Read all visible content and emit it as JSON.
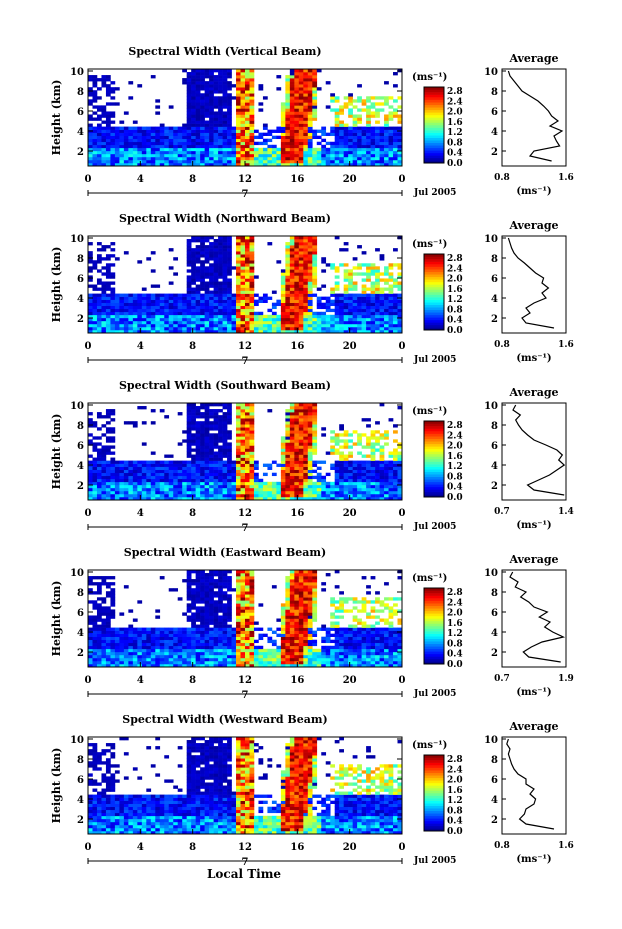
{
  "chart_data": [
    {
      "type": "heatmap",
      "title": "Spectral Width (Vertical Beam)",
      "ylabel": "Height (km)",
      "yticks": [
        2,
        4,
        6,
        8,
        10
      ],
      "ylim": [
        0.5,
        10.2
      ],
      "xticks": [
        "0",
        "4",
        "8",
        "12",
        "16",
        "20",
        "0"
      ],
      "xlim": [
        0,
        24
      ],
      "date_label": "Jul 2005",
      "day_marker": "7",
      "colorbar": {
        "unit": "(ms⁻¹)",
        "ticks": [
          "2.8",
          "2.4",
          "2.0",
          "1.6",
          "1.2",
          "0.8",
          "0.4",
          "0.0"
        ],
        "range": [
          0,
          3.0
        ]
      },
      "average": {
        "title": "Average",
        "xlabel": "(ms⁻¹)",
        "xticks": [
          "0.8",
          "1.6"
        ],
        "xlim": [
          0.8,
          1.6
        ],
        "heights": [
          1.0,
          1.5,
          2.0,
          2.5,
          3.0,
          3.5,
          4.0,
          4.5,
          5.0,
          5.5,
          6.0,
          6.5,
          7.0,
          7.5,
          8.0,
          8.5,
          9.0,
          9.5,
          10.0
        ],
        "values": [
          1.42,
          1.15,
          1.2,
          1.52,
          1.48,
          1.45,
          1.55,
          1.4,
          1.5,
          1.42,
          1.38,
          1.32,
          1.25,
          1.15,
          1.05,
          1.0,
          0.95,
          0.9,
          0.88
        ]
      }
    },
    {
      "type": "heatmap",
      "title": "Spectral Width (Northward Beam)",
      "ylabel": "Height (km)",
      "yticks": [
        2,
        4,
        6,
        8,
        10
      ],
      "ylim": [
        0.5,
        10.2
      ],
      "xticks": [
        "0",
        "4",
        "8",
        "12",
        "16",
        "20",
        "0"
      ],
      "xlim": [
        0,
        24
      ],
      "date_label": "Jul 2005",
      "day_marker": "7",
      "colorbar": {
        "unit": "(ms⁻¹)",
        "ticks": [
          "2.8",
          "2.4",
          "2.0",
          "1.6",
          "1.2",
          "0.8",
          "0.4",
          "0.0"
        ],
        "range": [
          0,
          3.0
        ]
      },
      "average": {
        "title": "Average",
        "xlabel": "(ms⁻¹)",
        "xticks": [
          "0.8",
          "1.6"
        ],
        "xlim": [
          0.8,
          1.6
        ],
        "heights": [
          1.0,
          1.5,
          2.0,
          2.5,
          3.0,
          3.5,
          4.0,
          4.5,
          5.0,
          5.5,
          6.0,
          6.5,
          7.0,
          7.5,
          8.0,
          8.5,
          9.0,
          9.5,
          10.0
        ],
        "values": [
          1.45,
          1.1,
          1.05,
          1.15,
          1.1,
          1.2,
          1.35,
          1.3,
          1.38,
          1.3,
          1.32,
          1.22,
          1.15,
          1.08,
          1.0,
          0.95,
          0.92,
          0.9,
          0.88
        ]
      }
    },
    {
      "type": "heatmap",
      "title": "Spectral Width (Southward Beam)",
      "ylabel": "Height (km)",
      "yticks": [
        2,
        4,
        6,
        8,
        10
      ],
      "ylim": [
        0.5,
        10.2
      ],
      "xticks": [
        "0",
        "4",
        "8",
        "12",
        "16",
        "20",
        "0"
      ],
      "xlim": [
        0,
        24
      ],
      "date_label": "Jul 2005",
      "day_marker": "7",
      "colorbar": {
        "unit": "(ms⁻¹)",
        "ticks": [
          "2.8",
          "2.4",
          "2.0",
          "1.6",
          "1.2",
          "0.8",
          "0.4",
          "0.0"
        ],
        "range": [
          0,
          3.0
        ]
      },
      "average": {
        "title": "Average",
        "xlabel": "(ms⁻¹)",
        "xticks": [
          "0.7",
          "1.4"
        ],
        "xlim": [
          0.7,
          1.4
        ],
        "heights": [
          1.0,
          1.5,
          2.0,
          2.5,
          3.0,
          3.5,
          4.0,
          4.5,
          5.0,
          5.5,
          6.0,
          6.5,
          7.0,
          7.5,
          8.0,
          8.5,
          9.0,
          9.5,
          10.0
        ],
        "values": [
          1.38,
          1.05,
          0.98,
          1.1,
          1.22,
          1.3,
          1.38,
          1.32,
          1.36,
          1.3,
          1.18,
          1.05,
          0.98,
          0.92,
          0.88,
          0.85,
          0.9,
          0.82,
          0.85
        ]
      }
    },
    {
      "type": "heatmap",
      "title": "Spectral Width (Eastward Beam)",
      "ylabel": "Height (km)",
      "yticks": [
        2,
        4,
        6,
        8,
        10
      ],
      "ylim": [
        0.5,
        10.2
      ],
      "xticks": [
        "0",
        "4",
        "8",
        "12",
        "16",
        "20",
        "0"
      ],
      "xlim": [
        0,
        24
      ],
      "date_label": "Jul 2005",
      "day_marker": "7",
      "colorbar": {
        "unit": "(ms⁻¹)",
        "ticks": [
          "2.8",
          "2.4",
          "2.0",
          "1.6",
          "1.2",
          "0.8",
          "0.4",
          "0.0"
        ],
        "range": [
          0,
          3.0
        ]
      },
      "average": {
        "title": "Average",
        "xlabel": "(ms⁻¹)",
        "xticks": [
          "0.7",
          "1.9"
        ],
        "xlim": [
          0.7,
          1.9
        ],
        "heights": [
          1.0,
          1.5,
          2.0,
          2.5,
          3.0,
          3.5,
          4.0,
          4.5,
          5.0,
          5.5,
          6.0,
          6.5,
          7.0,
          7.5,
          8.0,
          8.5,
          9.0,
          9.5,
          10.0
        ],
        "values": [
          1.8,
          1.2,
          1.1,
          1.25,
          1.45,
          1.85,
          1.65,
          1.5,
          1.6,
          1.4,
          1.55,
          1.3,
          1.2,
          1.05,
          1.15,
          0.95,
          1.0,
          0.85,
          0.9
        ]
      }
    },
    {
      "type": "heatmap",
      "title": "Spectral Width (Westward Beam)",
      "ylabel": "Height (km)",
      "yticks": [
        2,
        4,
        6,
        8,
        10
      ],
      "ylim": [
        0.5,
        10.2
      ],
      "xticks": [
        "0",
        "4",
        "8",
        "12",
        "16",
        "20",
        "0"
      ],
      "xlim": [
        0,
        24
      ],
      "date_label": "Jul 2005",
      "day_marker": "7",
      "colorbar": {
        "unit": "(ms⁻¹)",
        "ticks": [
          "2.8",
          "2.4",
          "2.0",
          "1.6",
          "1.2",
          "0.8",
          "0.4",
          "0.0"
        ],
        "range": [
          0,
          3.0
        ]
      },
      "average": {
        "title": "Average",
        "xlabel": "(ms⁻¹)",
        "xticks": [
          "0.8",
          "1.6"
        ],
        "xlim": [
          0.8,
          1.6
        ],
        "heights": [
          1.0,
          1.5,
          2.0,
          2.5,
          3.0,
          3.5,
          4.0,
          4.5,
          5.0,
          5.5,
          6.0,
          6.5,
          7.0,
          7.5,
          8.0,
          8.5,
          9.0,
          9.5,
          10.0
        ],
        "values": [
          1.45,
          1.1,
          1.02,
          1.08,
          1.1,
          1.2,
          1.22,
          1.15,
          1.2,
          1.1,
          1.1,
          1.0,
          0.95,
          0.92,
          0.9,
          0.88,
          0.9,
          0.86,
          0.88
        ]
      }
    }
  ],
  "footer": {
    "xlabel": "Local Time"
  }
}
